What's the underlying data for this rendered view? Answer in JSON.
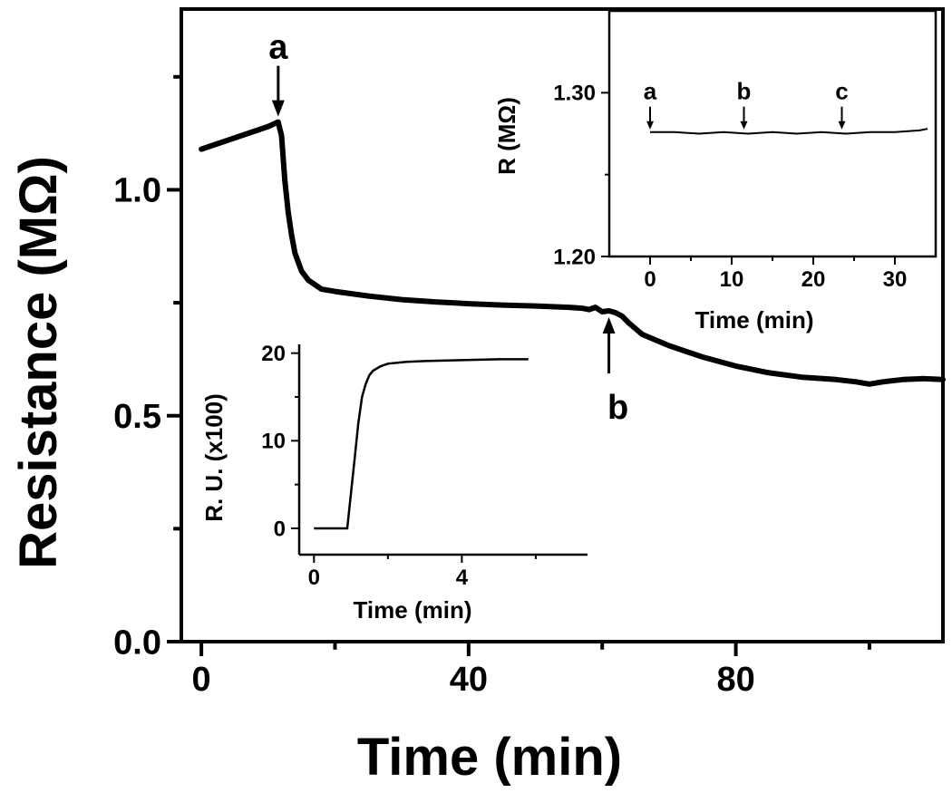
{
  "chart_data": [
    {
      "id": "main",
      "type": "line",
      "xlabel": "Time (min)",
      "ylabel": "Resistance (MΩ)",
      "xlim": [
        -3,
        111
      ],
      "ylim": [
        0.0,
        1.4
      ],
      "xticks": [
        0,
        40,
        80
      ],
      "xtick_labels": [
        "0",
        "40",
        "80"
      ],
      "yticks": [
        0.0,
        0.5,
        1.0
      ],
      "ytick_labels": [
        "0.0",
        "0.5",
        "1.0"
      ],
      "series": [
        {
          "x": [
            0,
            2,
            4,
            6,
            8,
            10,
            11.5,
            12,
            12.5,
            13,
            13.5,
            14,
            15,
            16,
            18,
            20,
            25,
            30,
            35,
            40,
            45,
            50,
            55,
            57,
            58,
            59,
            60,
            61,
            62,
            63,
            64,
            66,
            70,
            75,
            80,
            85,
            90,
            95,
            98,
            100,
            102,
            105,
            108,
            111
          ],
          "y": [
            1.09,
            1.1,
            1.11,
            1.12,
            1.13,
            1.14,
            1.15,
            1.12,
            1.02,
            0.95,
            0.9,
            0.86,
            0.82,
            0.8,
            0.78,
            0.775,
            0.765,
            0.757,
            0.752,
            0.748,
            0.745,
            0.743,
            0.74,
            0.738,
            0.735,
            0.74,
            0.73,
            0.732,
            0.728,
            0.72,
            0.705,
            0.68,
            0.655,
            0.63,
            0.61,
            0.595,
            0.585,
            0.58,
            0.575,
            0.57,
            0.575,
            0.58,
            0.582,
            0.58
          ]
        }
      ],
      "annotations": [
        {
          "text": "a",
          "x": 11.5,
          "y": 1.15,
          "position": "above"
        },
        {
          "text": "b",
          "x": 61,
          "y": 0.73,
          "position": "below"
        }
      ]
    },
    {
      "id": "inset-top-right",
      "type": "line",
      "xlabel": "Time (min)",
      "ylabel": "R (MΩ)",
      "xlim": [
        -5,
        35
      ],
      "ylim": [
        1.2,
        1.35
      ],
      "xticks": [
        0,
        10,
        20,
        30
      ],
      "xtick_labels": [
        "0",
        "10",
        "20",
        "30"
      ],
      "yticks": [
        1.2,
        1.3
      ],
      "ytick_labels": [
        "1.20",
        "1.30"
      ],
      "series": [
        {
          "x": [
            0,
            3,
            6,
            9,
            12,
            15,
            18,
            21,
            24,
            27,
            30,
            33,
            34
          ],
          "y": [
            1.276,
            1.276,
            1.275,
            1.276,
            1.275,
            1.276,
            1.275,
            1.276,
            1.275,
            1.276,
            1.276,
            1.277,
            1.278
          ]
        }
      ],
      "annotations": [
        {
          "text": "a",
          "x": 0,
          "y": 1.276
        },
        {
          "text": "b",
          "x": 11.5,
          "y": 1.276
        },
        {
          "text": "c",
          "x": 23.5,
          "y": 1.276
        }
      ]
    },
    {
      "id": "inset-bottom-left",
      "type": "line",
      "xlabel": "Time (min)",
      "ylabel": "R. U. (x100)",
      "xlim": [
        -0.4,
        7.4
      ],
      "ylim": [
        -3,
        21
      ],
      "xticks": [
        0,
        4
      ],
      "xtick_labels": [
        "0",
        "4"
      ],
      "yticks": [
        0,
        10,
        20
      ],
      "ytick_labels": [
        "0",
        "10",
        "20"
      ],
      "series": [
        {
          "x": [
            0,
            0.5,
            0.9,
            1.0,
            1.1,
            1.2,
            1.3,
            1.4,
            1.5,
            1.6,
            1.8,
            2.0,
            2.5,
            3,
            4,
            5,
            5.8
          ],
          "y": [
            0,
            0,
            0,
            4,
            8,
            12,
            15,
            16.5,
            17.5,
            18,
            18.5,
            18.8,
            19,
            19.1,
            19.2,
            19.3,
            19.3
          ]
        }
      ]
    }
  ]
}
